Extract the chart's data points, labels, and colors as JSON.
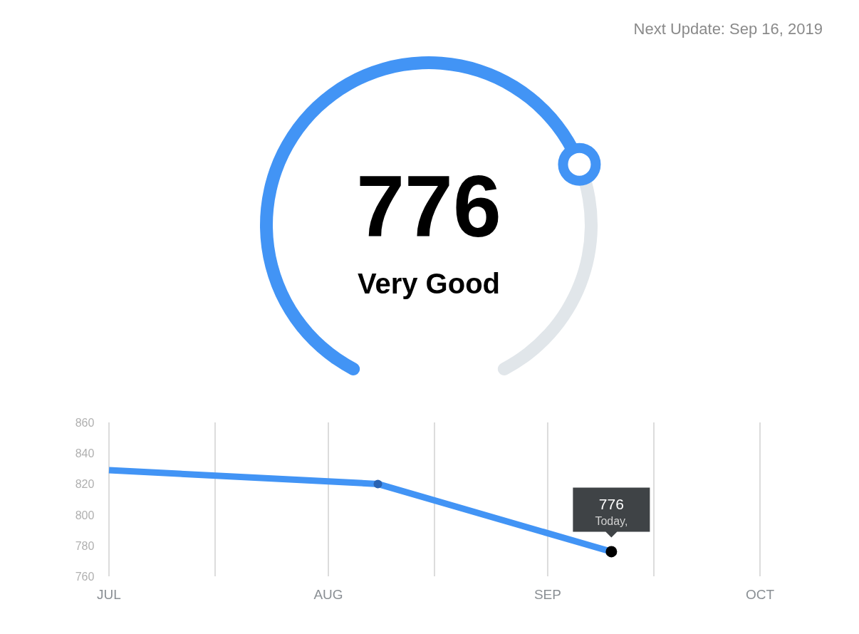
{
  "chart_data": [
    {
      "type": "donut",
      "categories": [
        null,
        null
      ],
      "values": [
        72,
        28
      ],
      "colors": [
        "#4294f5",
        "#e1e6ea"
      ],
      "annotations": [
        "776",
        "Very Good",
        "Next Update: Sep 16, 2019"
      ]
    },
    {
      "type": "line",
      "x": [
        "2019-07-01",
        "2019-08-08",
        "2019-09-10"
      ],
      "series": [
        {
          "type": "line",
          "color": "#4294f5",
          "values": [
            829,
            820,
            776
          ],
          "value_labels": [
            null,
            null,
            "776"
          ]
        },
        {
          "type": "scatter",
          "marker": "circle",
          "x": [
            "2019-08-08",
            "2019-09-10"
          ],
          "values": [
            820,
            776
          ],
          "colors": [
            "#2a64b4",
            "#000000"
          ]
        }
      ],
      "xlim": [
        "2019-07-01",
        "2019-10-01"
      ],
      "xticks": [
        {
          "value": "2019-07-01",
          "label": "JUL"
        },
        {
          "value": "2019-07-16",
          "label": null
        },
        {
          "value": "2019-08-01",
          "label": "AUG"
        },
        {
          "value": "2019-08-16",
          "label": null
        },
        {
          "value": "2019-09-01",
          "label": "SEP"
        },
        {
          "value": "2019-09-16",
          "label": null
        },
        {
          "value": "2019-10-01",
          "label": "OCT"
        }
      ],
      "ylim": [
        760,
        860
      ],
      "yticks": [
        760,
        780,
        800,
        820,
        840,
        860
      ],
      "grid": "x",
      "annotations": [
        {
          "text": "Today,",
          "x": "2019-09-10",
          "y": 776
        }
      ]
    }
  ]
}
